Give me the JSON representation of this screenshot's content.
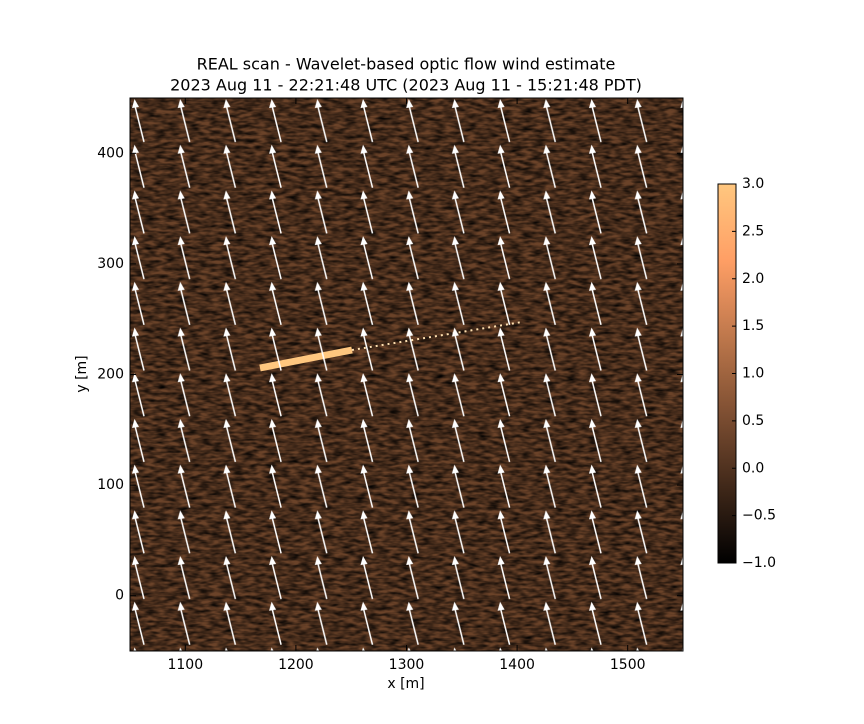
{
  "chart_data": {
    "type": "heatmap",
    "title": "REAL scan - Wavelet-based optic flow wind estimate",
    "subtitle": "2023 Aug 11 - 22:21:48 UTC (2023 Aug 11 - 15:21:48 PDT)",
    "xlabel": "x [m]",
    "ylabel": "y [m]",
    "xlim": [
      1050,
      1550
    ],
    "xticks": [
      1100,
      1200,
      1300,
      1400,
      1500
    ],
    "ylim": [
      -50,
      450
    ],
    "yticks": [
      0,
      100,
      200,
      300,
      400
    ],
    "colormap": "copper",
    "colorbar": {
      "lim": [
        -1,
        3
      ],
      "ticks": [
        {
          "value": -1,
          "label": "−1.0"
        },
        {
          "value": -0.5,
          "label": "−0.5"
        },
        {
          "value": 0,
          "label": "0.0"
        },
        0.5,
        {
          "value": 1,
          "label": "1.0"
        },
        1.5,
        {
          "value": 2,
          "label": "2.0"
        },
        2.5,
        {
          "value": 3,
          "label": "3.0"
        }
      ]
    }
  }
}
